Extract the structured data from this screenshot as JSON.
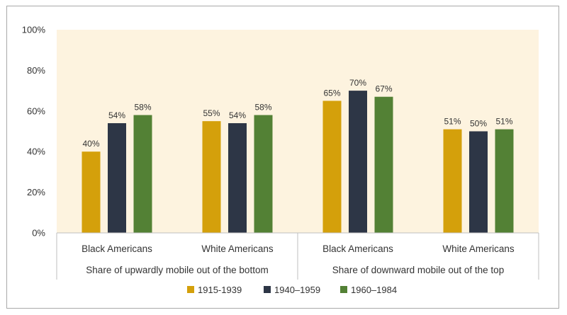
{
  "chart_data": {
    "type": "bar",
    "ylim": [
      0,
      100
    ],
    "yticks": [
      0,
      20,
      40,
      60,
      80,
      100
    ],
    "ytick_labels": [
      "0%",
      "20%",
      "40%",
      "60%",
      "80%",
      "100%"
    ],
    "categories": [
      "Black Americans",
      "White Americans",
      "Black Americans",
      "White Americans"
    ],
    "groups": [
      {
        "label": "Share of upwardly mobile out of the bottom",
        "span": [
          0,
          1
        ]
      },
      {
        "label": "Share of downward mobile out of the top",
        "span": [
          2,
          3
        ]
      }
    ],
    "series": [
      {
        "name": "1915-1939",
        "color": "#d4a00b",
        "values": [
          40,
          55,
          65,
          51
        ],
        "labels": [
          "40%",
          "55%",
          "65%",
          "51%"
        ]
      },
      {
        "name": "1940–1959",
        "color": "#2d3646",
        "values": [
          54,
          54,
          70,
          50
        ],
        "labels": [
          "54%",
          "54%",
          "70%",
          "50%"
        ]
      },
      {
        "name": "1960–1984",
        "color": "#538135",
        "values": [
          58,
          58,
          67,
          51
        ],
        "labels": [
          "58%",
          "58%",
          "67%",
          "51%"
        ]
      }
    ],
    "plot_background": "#fdf3df",
    "legend_position": "bottom"
  }
}
